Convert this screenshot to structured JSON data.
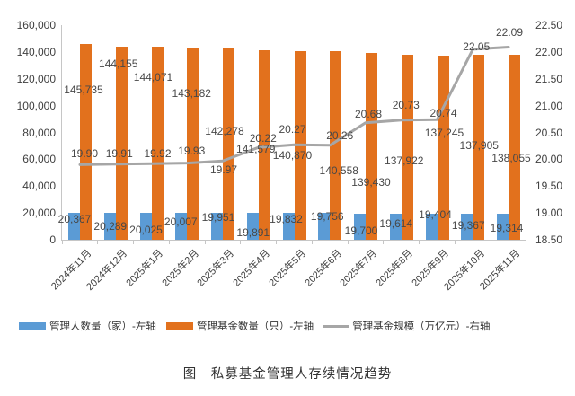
{
  "figure_caption": "图　私募基金管理人存续情况趋势",
  "chart_data": {
    "type": "combo-bar-line",
    "title": "",
    "categories": [
      "2024年11月",
      "2024年12月",
      "2025年1月",
      "2025年2月",
      "2025年3月",
      "2025年4月",
      "2025年5月",
      "2025年6月",
      "2025年7月",
      "2025年8月",
      "2025年9月",
      "2025年10月",
      "2025年11月"
    ],
    "series": [
      {
        "name": "管理人数量（家）-左轴",
        "type": "bar",
        "axis": "left",
        "color": "#5B9BD5",
        "values": [
          20367,
          20289,
          20025,
          20007,
          19951,
          19891,
          19832,
          19756,
          19700,
          19614,
          19404,
          19367,
          19314
        ]
      },
      {
        "name": "管理基金数量（只）-左轴",
        "type": "bar",
        "axis": "left",
        "color": "#E2711D",
        "values": [
          145735,
          144155,
          144071,
          143182,
          142278,
          141579,
          140870,
          140558,
          139430,
          137922,
          137245,
          137905,
          138055
        ]
      },
      {
        "name": "管理基金规模（万亿元）-右轴",
        "type": "line",
        "axis": "right",
        "color": "#A6A6A6",
        "values": [
          19.9,
          19.91,
          19.92,
          19.93,
          19.97,
          20.22,
          20.27,
          20.26,
          20.68,
          20.73,
          20.74,
          22.05,
          22.09
        ]
      }
    ],
    "left_axis": {
      "min": 0,
      "max": 160000,
      "step": 20000
    },
    "right_axis": {
      "min": 18.5,
      "max": 22.5,
      "step": 0.5
    },
    "grid": false,
    "data_labels": true,
    "legend_position": "bottom",
    "label_layout": {
      "comment": "per-series data-label placement hints: y = absolute px center, dx = px offset from group center",
      "y": [
        [
          244,
          252,
          256,
          247,
          242,
          259,
          244,
          241,
          257,
          249,
          239,
          251,
          254
        ],
        [
          100,
          71,
          86,
          104,
          146,
          166,
          173,
          190,
          203,
          179,
          148,
          162,
          176
        ],
        [
          171,
          171,
          171,
          168,
          189,
          154,
          144,
          151,
          127,
          117,
          126,
          52,
          36
        ]
      ],
      "dx": [
        [
          -6,
          -6,
          -6,
          -7,
          -5,
          -6,
          -9,
          -3,
          -5,
          -6,
          -2,
          -5,
          -2
        ],
        [
          4,
          3,
          2,
          5,
          2,
          -3,
          -2,
          10,
          6,
          3,
          8,
          7,
          3
        ],
        [
          5,
          4,
          7,
          5,
          1,
          5,
          -2,
          11,
          3,
          5,
          7,
          4,
          1
        ]
      ]
    }
  }
}
